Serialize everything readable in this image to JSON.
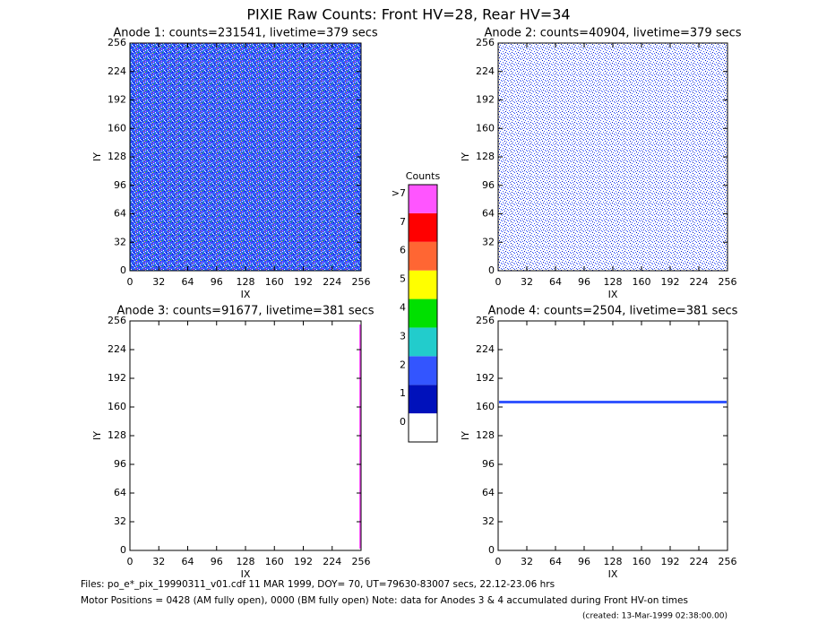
{
  "title": "PIXIE Raw Counts:  Front HV=28, Rear HV=34",
  "footer": [
    "Files: po_e*_pix_19990311_v01.cdf    11 MAR 1999, DOY= 70, UT=79630-83007 secs, 22.12-23.06 hrs",
    "Motor Positions = 0428 (AM fully open), 0000 (BM fully open)    Note: data for Anodes 3 & 4 accumulated during Front HV-on times",
    "(created: 13-Mar-1999 02:38:00.00)"
  ],
  "chart_data": [
    {
      "type": "heatmap",
      "title": "Anode 1: counts=231541, livetime=379 secs",
      "xlabel": "IX",
      "ylabel": "IY",
      "xlim": [
        0,
        256
      ],
      "ylim": [
        0,
        256
      ],
      "xticks": [
        0,
        32,
        64,
        96,
        128,
        160,
        192,
        224,
        256
      ],
      "yticks": [
        0,
        32,
        64,
        96,
        128,
        160,
        192,
        224,
        256
      ]
    },
    {
      "type": "heatmap",
      "title": "Anode 2: counts=40904, livetime=379 secs",
      "xlabel": "IX",
      "ylabel": "IY",
      "xlim": [
        0,
        256
      ],
      "ylim": [
        0,
        256
      ],
      "xticks": [
        0,
        32,
        64,
        96,
        128,
        160,
        192,
        224,
        256
      ],
      "yticks": [
        0,
        32,
        64,
        96,
        128,
        160,
        192,
        224,
        256
      ]
    },
    {
      "type": "heatmap",
      "title": "Anode 3: counts=91677, livetime=381 secs",
      "xlabel": "IX",
      "ylabel": "IY",
      "xlim": [
        0,
        256
      ],
      "ylim": [
        0,
        256
      ],
      "xticks": [
        0,
        32,
        64,
        96,
        128,
        160,
        192,
        224,
        256
      ],
      "yticks": [
        0,
        32,
        64,
        96,
        128,
        160,
        192,
        224,
        256
      ]
    },
    {
      "type": "heatmap",
      "title": "Anode 4: counts=2504, livetime=381 secs",
      "xlabel": "IX",
      "ylabel": "IY",
      "xlim": [
        0,
        256
      ],
      "ylim": [
        0,
        256
      ],
      "xticks": [
        0,
        32,
        64,
        96,
        128,
        160,
        192,
        224,
        256
      ],
      "yticks": [
        0,
        32,
        64,
        96,
        128,
        160,
        192,
        224,
        256
      ]
    },
    {
      "type": "colorbar",
      "title": "Counts",
      "categories": [
        "0",
        "1",
        "2",
        "3",
        "4",
        "5",
        "6",
        "7",
        ">7"
      ],
      "colors": [
        "#ffffff",
        "#0011bb",
        "#3355ff",
        "#22cccc",
        "#00e000",
        "#ffff00",
        "#ff6633",
        "#ff0000",
        "#ff55ff"
      ]
    }
  ]
}
